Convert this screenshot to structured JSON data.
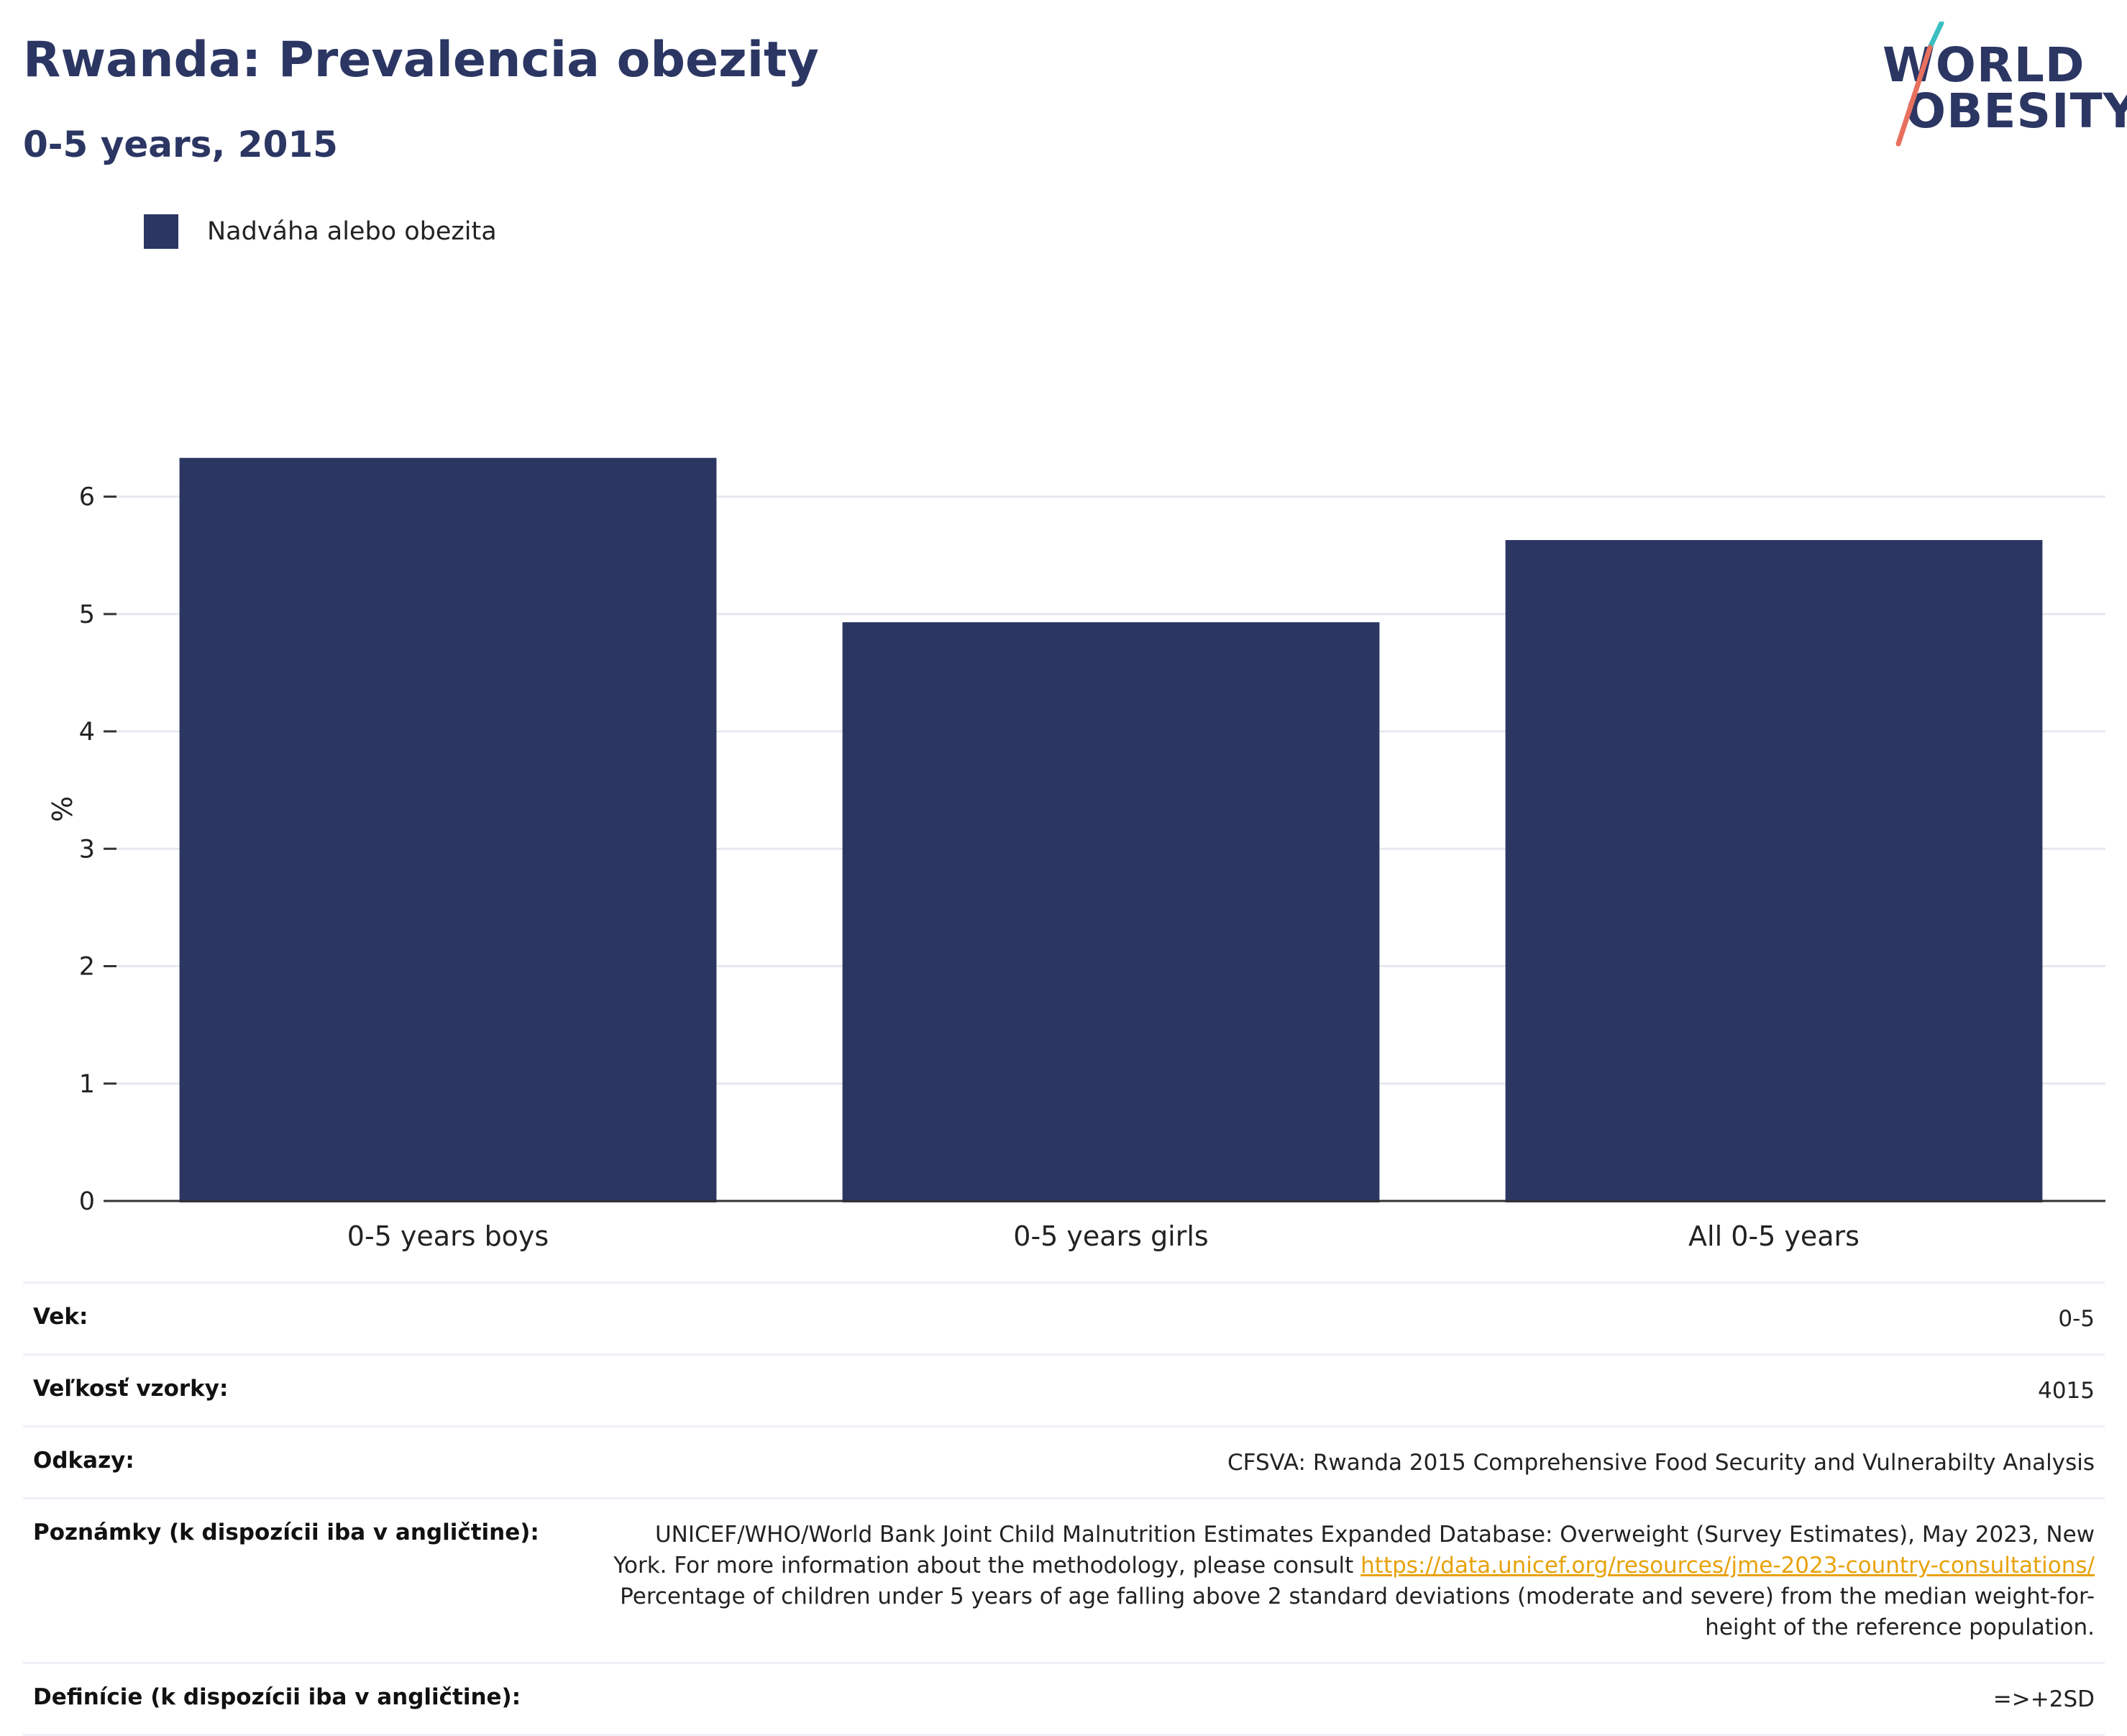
{
  "title": "Rwanda: Prevalencia obezity",
  "subtitle": "0-5 years, 2015",
  "logo": {
    "line1": "WORLD",
    "line2": "OBESITY"
  },
  "legend": {
    "label": "Nadváha alebo obezita",
    "color": "#2b3663"
  },
  "chart_data": {
    "type": "bar",
    "categories": [
      "0-5 years boys",
      "0-5 years girls",
      "All 0-5 years"
    ],
    "series": [
      {
        "name": "Nadváha alebo obezita",
        "values": [
          6.33,
          4.93,
          5.63
        ],
        "color": "#2b3663"
      }
    ],
    "ylabel": "%",
    "ylim": [
      0,
      6.8
    ],
    "yticks": [
      0,
      1,
      2,
      3,
      4,
      5,
      6
    ],
    "grid": true,
    "legend_position": "top-left"
  },
  "info": {
    "age": {
      "key": "Vek:",
      "value": "0-5"
    },
    "sample": {
      "key": "Veľkosť vzorky:",
      "value": "4015"
    },
    "refs": {
      "key": "Odkazy:",
      "value": "CFSVA: Rwanda 2015 Comprehensive Food Security and Vulnerabilty Analysis"
    },
    "notes": {
      "key": "Poznámky (k dispozícii iba v angličtine):",
      "line1": "UNICEF/WHO/World Bank Joint Child Malnutrition Estimates Expanded Database: Overweight (Survey Estimates), May 2023, New York. For more information about the methodology, please consult",
      "link": "https://data.unicef.org/resources/jme-2023-country-consultations/",
      "line2": "Percentage of children under 5 years of age falling above 2 standard deviations (moderate and severe) from the median weight-for-height of the reference population."
    },
    "defs": {
      "key": "Definície (k dispozícii iba v angličtine):",
      "value": "=>+2SD"
    }
  },
  "colors": {
    "accent": "#2b3663",
    "link": "#e8a20b",
    "grid": "#e6e8ef",
    "logo_teal": "#3bbfc1",
    "logo_coral": "#e8705f"
  }
}
